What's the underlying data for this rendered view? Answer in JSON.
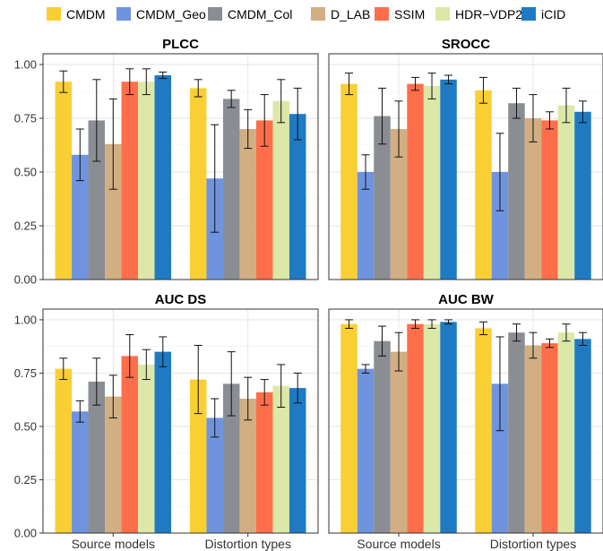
{
  "chart_data": {
    "type": "bar",
    "legend_position": "top",
    "series_names": [
      "CMDM",
      "CMDM_Geo",
      "CMDM_Col",
      "D_LAB",
      "SSIM",
      "HDR−VDP2",
      "iCID"
    ],
    "series_colors": [
      "#F9CF34",
      "#6F94DF",
      "#8A8D91",
      "#D1AF83",
      "#FF6E4A",
      "#DCE8A8",
      "#1F7AC4"
    ],
    "categories": [
      "Source models",
      "Distortion types"
    ],
    "ylim": [
      0,
      1.05
    ],
    "yticks": [
      "0.00",
      "0.25",
      "0.50",
      "0.75",
      "1.00"
    ],
    "grid": true,
    "panels": [
      {
        "title": "PLCC",
        "values": [
          [
            0.92,
            0.89
          ],
          [
            0.58,
            0.47
          ],
          [
            0.74,
            0.84
          ],
          [
            0.63,
            0.7
          ],
          [
            0.92,
            0.74
          ],
          [
            0.92,
            0.83
          ],
          [
            0.95,
            0.77
          ]
        ],
        "errors": [
          [
            0.05,
            0.04
          ],
          [
            0.12,
            0.25
          ],
          [
            0.19,
            0.04
          ],
          [
            0.21,
            0.09
          ],
          [
            0.06,
            0.12
          ],
          [
            0.06,
            0.1
          ],
          [
            0.015,
            0.12
          ]
        ]
      },
      {
        "title": "SROCC",
        "values": [
          [
            0.91,
            0.88
          ],
          [
            0.5,
            0.5
          ],
          [
            0.76,
            0.82
          ],
          [
            0.7,
            0.75
          ],
          [
            0.91,
            0.74
          ],
          [
            0.9,
            0.81
          ],
          [
            0.93,
            0.78
          ]
        ],
        "errors": [
          [
            0.05,
            0.06
          ],
          [
            0.08,
            0.18
          ],
          [
            0.13,
            0.07
          ],
          [
            0.13,
            0.11
          ],
          [
            0.03,
            0.04
          ],
          [
            0.06,
            0.08
          ],
          [
            0.02,
            0.05
          ]
        ]
      },
      {
        "title": "AUC DS",
        "values": [
          [
            0.77,
            0.72
          ],
          [
            0.57,
            0.54
          ],
          [
            0.71,
            0.7
          ],
          [
            0.64,
            0.63
          ],
          [
            0.83,
            0.66
          ],
          [
            0.79,
            0.69
          ],
          [
            0.85,
            0.68
          ]
        ],
        "errors": [
          [
            0.05,
            0.16
          ],
          [
            0.05,
            0.09
          ],
          [
            0.11,
            0.15
          ],
          [
            0.1,
            0.1
          ],
          [
            0.1,
            0.06
          ],
          [
            0.07,
            0.1
          ],
          [
            0.07,
            0.07
          ]
        ]
      },
      {
        "title": "AUC BW",
        "values": [
          [
            0.98,
            0.96
          ],
          [
            0.77,
            0.7
          ],
          [
            0.9,
            0.94
          ],
          [
            0.85,
            0.88
          ],
          [
            0.98,
            0.89
          ],
          [
            0.98,
            0.94
          ],
          [
            0.99,
            0.91
          ]
        ],
        "errors": [
          [
            0.02,
            0.03
          ],
          [
            0.02,
            0.22
          ],
          [
            0.07,
            0.04
          ],
          [
            0.09,
            0.06
          ],
          [
            0.02,
            0.02
          ],
          [
            0.02,
            0.04
          ],
          [
            0.01,
            0.03
          ]
        ]
      }
    ]
  }
}
